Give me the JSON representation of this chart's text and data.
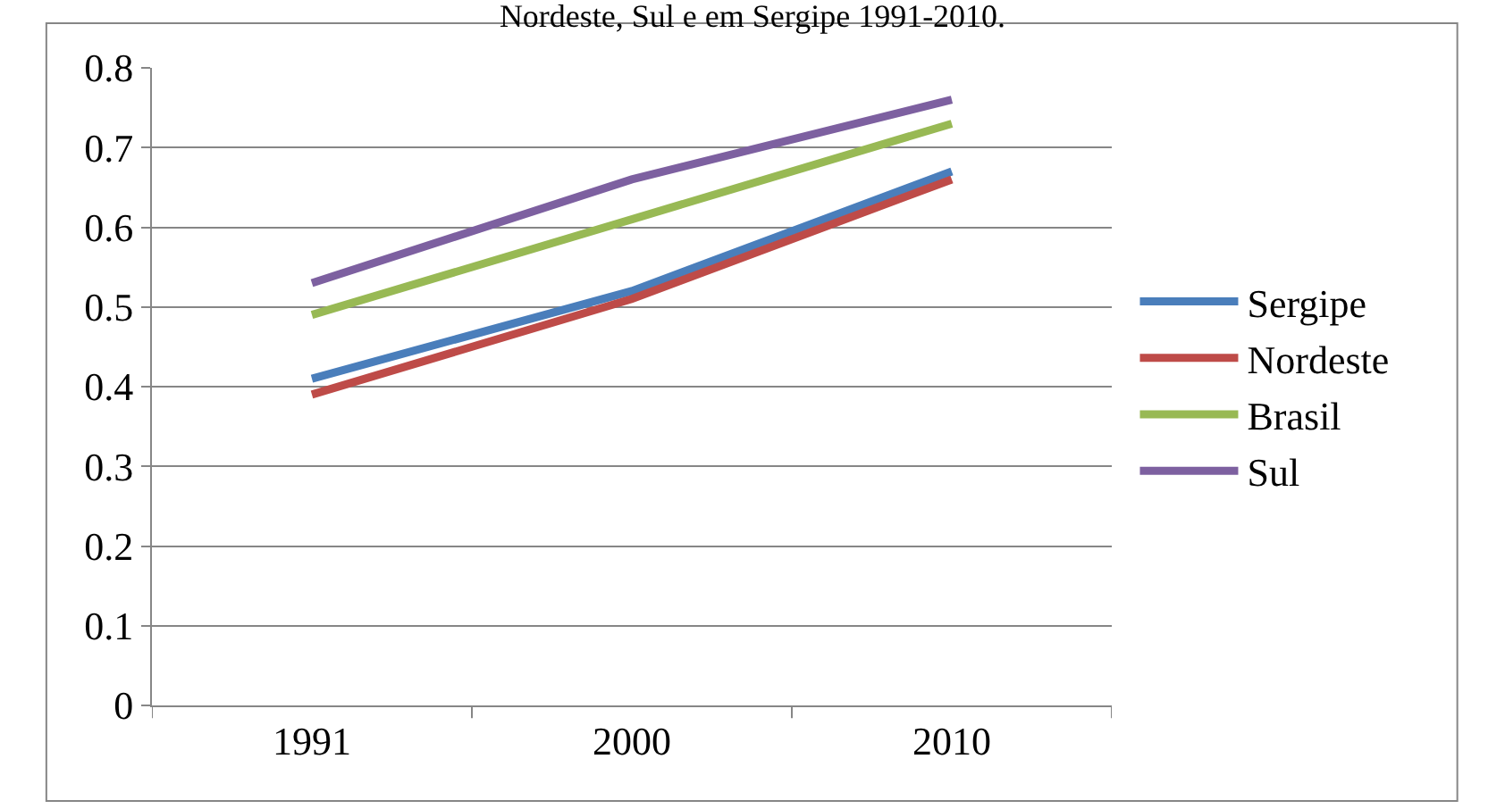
{
  "chart_data": {
    "type": "line",
    "title": "Nordeste, Sul e em Sergipe 1991-2010.",
    "categories": [
      "1991",
      "2000",
      "2010"
    ],
    "series": [
      {
        "name": "Sergipe",
        "color": "#4a7ebb",
        "values": [
          0.41,
          0.52,
          0.67
        ]
      },
      {
        "name": "Nordeste",
        "color": "#be4b48",
        "values": [
          0.39,
          0.51,
          0.66
        ]
      },
      {
        "name": "Brasil",
        "color": "#98b954",
        "values": [
          0.49,
          0.61,
          0.73
        ]
      },
      {
        "name": "Sul",
        "color": "#7d60a0",
        "values": [
          0.53,
          0.66,
          0.76
        ]
      }
    ],
    "ylim": [
      0,
      0.8
    ],
    "yticks": [
      0,
      0.1,
      0.2,
      0.3,
      0.4,
      0.5,
      0.6,
      0.7,
      0.8
    ],
    "grid": "y",
    "legend": "right",
    "marker": "none",
    "line_style": "solid"
  }
}
